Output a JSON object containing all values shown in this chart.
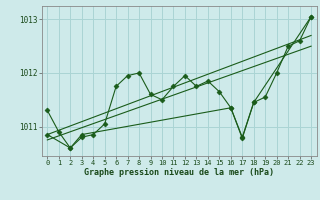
{
  "xlabel": "Graphe pression niveau de la mer (hPa)",
  "bg_color": "#ceeaea",
  "grid_color": "#aad4d4",
  "line_color": "#1a5c1a",
  "xlim": [
    -0.5,
    23.5
  ],
  "ylim": [
    1010.45,
    1013.25
  ],
  "yticks": [
    1011,
    1012,
    1013
  ],
  "xticks": [
    0,
    1,
    2,
    3,
    4,
    5,
    6,
    7,
    8,
    9,
    10,
    11,
    12,
    13,
    14,
    15,
    16,
    17,
    18,
    19,
    20,
    21,
    22,
    23
  ],
  "series1_x": [
    0,
    1,
    2,
    3,
    4,
    5,
    6,
    7,
    8,
    9,
    10,
    11,
    12,
    13,
    14,
    15,
    16,
    17,
    18,
    19,
    20,
    21,
    22,
    23
  ],
  "series1_y": [
    1011.3,
    1010.9,
    1010.6,
    1010.8,
    1010.85,
    1011.05,
    1011.75,
    1011.95,
    1012.0,
    1011.6,
    1011.5,
    1011.75,
    1011.95,
    1011.75,
    1011.85,
    1011.65,
    1011.35,
    1010.8,
    1011.45,
    1011.55,
    1012.0,
    1012.5,
    1012.6,
    1013.05
  ],
  "trend1_x": [
    0,
    23
  ],
  "trend1_y": [
    1010.85,
    1012.7
  ],
  "trend2_x": [
    0,
    23
  ],
  "trend2_y": [
    1010.75,
    1012.5
  ],
  "series2_x": [
    0,
    2,
    3,
    16,
    17,
    18,
    23
  ],
  "series2_y": [
    1010.85,
    1010.6,
    1010.85,
    1011.35,
    1010.78,
    1011.45,
    1013.05
  ]
}
